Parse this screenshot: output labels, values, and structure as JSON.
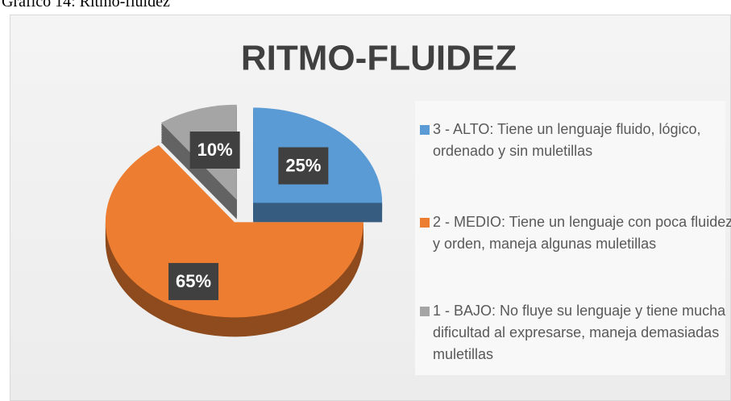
{
  "caption": "Gráfico 14: Ritmo-fluidez",
  "chart_data": {
    "type": "pie",
    "title": "RITMO-FLUIDEZ",
    "categories": [
      "3 - ALTO:  Tiene un lenguaje fluido, lógico, ordenado y sin muletillas",
      "2 - MEDIO:  Tiene un lenguaje con poca fluidez  y orden, maneja algunas muletillas",
      "1 - BAJO:  No fluye su lenguaje y tiene mucha dificultad al expresarse, maneja demasiadas muletillas"
    ],
    "values": [
      25,
      65,
      10
    ],
    "value_labels": [
      "25%",
      "65%",
      "10%"
    ],
    "colors": [
      "#5b9bd5",
      "#ed7d31",
      "#a5a5a5"
    ],
    "legend": "right"
  }
}
